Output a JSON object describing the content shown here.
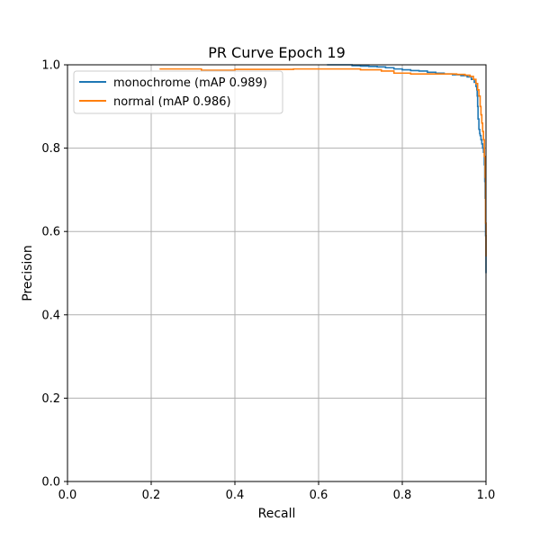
{
  "chart_data": {
    "type": "line",
    "title": "PR Curve Epoch 19",
    "xlabel": "Recall",
    "ylabel": "Precision",
    "xlim": [
      0.0,
      1.0
    ],
    "ylim": [
      0.0,
      1.0
    ],
    "xticks": [
      0.0,
      0.2,
      0.4,
      0.6,
      0.8,
      1.0
    ],
    "yticks": [
      0.0,
      0.2,
      0.4,
      0.6,
      0.8,
      1.0
    ],
    "xtick_labels": [
      "0.0",
      "0.2",
      "0.4",
      "0.6",
      "0.8",
      "1.0"
    ],
    "ytick_labels": [
      "0.0",
      "0.2",
      "0.4",
      "0.6",
      "0.8",
      "1.0"
    ],
    "grid": true,
    "legend_position": "upper-left",
    "series": [
      {
        "name": "monochrome (mAP 0.989)",
        "color": "#1f77b4",
        "x": [
          0.62,
          0.62,
          0.68,
          0.7,
          0.72,
          0.74,
          0.76,
          0.78,
          0.8,
          0.82,
          0.84,
          0.86,
          0.88,
          0.9,
          0.92,
          0.94,
          0.955,
          0.965,
          0.972,
          0.976,
          0.978,
          0.979,
          0.98,
          0.981,
          0.983,
          0.985,
          0.986,
          0.988,
          0.99,
          0.992,
          0.994,
          0.996,
          0.997,
          0.998,
          0.999,
          1.0
        ],
        "y": [
          1.0,
          1.0,
          0.998,
          0.997,
          0.996,
          0.995,
          0.993,
          0.99,
          0.988,
          0.986,
          0.985,
          0.982,
          0.98,
          0.978,
          0.976,
          0.974,
          0.971,
          0.965,
          0.958,
          0.948,
          0.94,
          0.925,
          0.9,
          0.87,
          0.845,
          0.835,
          0.83,
          0.82,
          0.81,
          0.8,
          0.79,
          0.76,
          0.72,
          0.68,
          0.59,
          0.5
        ]
      },
      {
        "name": "normal (mAP 0.986)",
        "color": "#ff7f0e",
        "x": [
          0.22,
          0.22,
          0.32,
          0.4,
          0.54,
          0.6,
          0.7,
          0.75,
          0.78,
          0.82,
          0.86,
          0.9,
          0.93,
          0.95,
          0.962,
          0.97,
          0.976,
          0.98,
          0.983,
          0.986,
          0.988,
          0.99,
          0.992,
          0.994,
          0.996,
          0.998,
          0.999,
          1.0
        ],
        "y": [
          0.99,
          0.99,
          0.987,
          0.989,
          0.99,
          0.99,
          0.988,
          0.985,
          0.98,
          0.978,
          0.978,
          0.978,
          0.977,
          0.975,
          0.972,
          0.965,
          0.955,
          0.94,
          0.925,
          0.9,
          0.88,
          0.86,
          0.84,
          0.82,
          0.78,
          0.73,
          0.62,
          0.54
        ]
      }
    ]
  }
}
